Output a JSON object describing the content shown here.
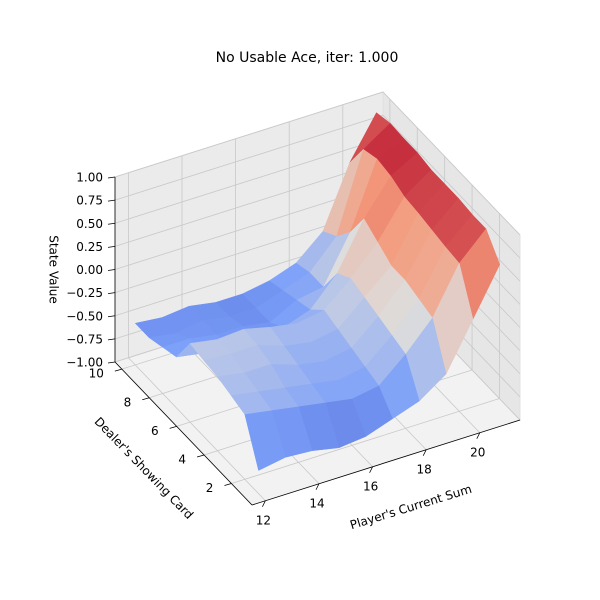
{
  "chart_data": {
    "type": "surface3d",
    "title": "No Usable Ace, iter: 1.000",
    "x_label": "Player's Current Sum",
    "y_label": "Dealer's Showing Card",
    "z_label": "State Value",
    "x": [
      12,
      13,
      14,
      15,
      16,
      17,
      18,
      19,
      20,
      21
    ],
    "y": [
      1,
      2,
      3,
      4,
      5,
      6,
      7,
      8,
      9,
      10
    ],
    "z": [
      [
        -0.75,
        -0.7,
        -0.72,
        -0.78,
        -0.75,
        -0.65,
        -0.55,
        -0.35,
        0.15,
        0.65
      ],
      [
        -0.3,
        -0.35,
        -0.4,
        -0.45,
        -0.5,
        -0.45,
        -0.2,
        0.1,
        0.6,
        0.88
      ],
      [
        -0.25,
        -0.3,
        -0.35,
        -0.4,
        -0.45,
        -0.4,
        -0.15,
        0.15,
        0.62,
        0.88
      ],
      [
        -0.2,
        -0.25,
        -0.25,
        -0.35,
        -0.4,
        -0.35,
        -0.1,
        0.2,
        0.65,
        0.9
      ],
      [
        -0.18,
        -0.2,
        -0.2,
        -0.3,
        -0.35,
        -0.3,
        -0.05,
        0.2,
        0.68,
        0.9
      ],
      [
        -0.15,
        -0.2,
        -0.18,
        -0.25,
        -0.3,
        -0.25,
        0.0,
        0.3,
        0.7,
        0.9
      ],
      [
        -0.45,
        -0.5,
        -0.5,
        -0.55,
        -0.5,
        -0.4,
        -0.1,
        0.4,
        0.77,
        0.93
      ],
      [
        -0.5,
        -0.5,
        -0.55,
        -0.55,
        -0.6,
        -0.45,
        -0.4,
        0.1,
        0.8,
        0.93
      ],
      [
        -0.55,
        -0.6,
        -0.55,
        -0.6,
        -0.6,
        -0.5,
        -0.4,
        -0.1,
        0.75,
        0.94
      ],
      [
        -0.55,
        -0.58,
        -0.55,
        -0.6,
        -0.6,
        -0.55,
        -0.45,
        -0.2,
        0.45,
        0.9
      ]
    ],
    "xlim": [
      11.5,
      21.5
    ],
    "ylim": [
      0.5,
      10.5
    ],
    "zlim": [
      -1,
      1
    ],
    "xticks": [
      12,
      14,
      16,
      18,
      20
    ],
    "yticks": [
      2,
      4,
      6,
      8,
      10
    ],
    "zticks": [
      {
        "value": -1,
        "label": "−1.00"
      },
      {
        "value": -0.75,
        "label": "−0.75"
      },
      {
        "value": -0.5,
        "label": "−0.50"
      },
      {
        "value": -0.25,
        "label": "−0.25"
      },
      {
        "value": 0,
        "label": "0.00"
      },
      {
        "value": 0.25,
        "label": "0.25"
      },
      {
        "value": 0.5,
        "label": "0.50"
      },
      {
        "value": 0.75,
        "label": "0.75"
      },
      {
        "value": 1,
        "label": "1.00"
      }
    ],
    "colormap": "coolwarm",
    "grid": true
  }
}
